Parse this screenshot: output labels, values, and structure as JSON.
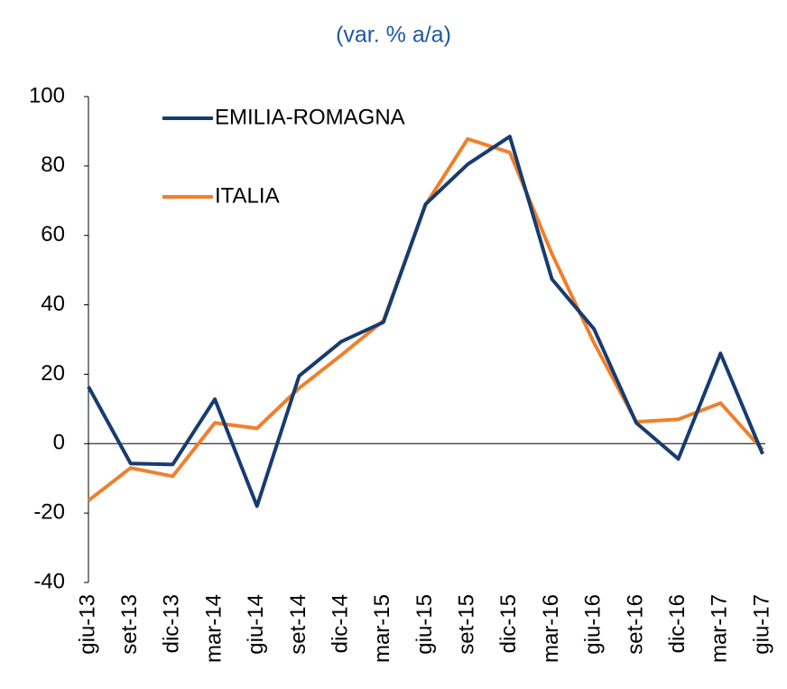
{
  "chart_data": {
    "type": "line",
    "title": "(var. % a/a)",
    "categories": [
      "giu-13",
      "set-13",
      "dic-13",
      "mar-14",
      "giu-14",
      "set-14",
      "dic-14",
      "mar-15",
      "giu-15",
      "set-15",
      "dic-15",
      "mar-16",
      "giu-16",
      "set-16",
      "dic-16",
      "mar-17",
      "giu-17"
    ],
    "series": [
      {
        "name": "EMILIA-ROMAGNA",
        "color": "#163c70",
        "values": [
          16.4,
          -5.7,
          -6,
          12.8,
          -18,
          19.5,
          29.4,
          35,
          69,
          80.5,
          88.5,
          47.4,
          33,
          6,
          -4.4,
          26,
          -3
        ]
      },
      {
        "name": "ITALIA",
        "color": "#f07f2c",
        "values": [
          -16.4,
          -7,
          -9.4,
          6,
          4.4,
          16,
          25.5,
          35.4,
          68.8,
          87.8,
          83.9,
          54.7,
          29,
          6.3,
          7,
          11.7,
          -1.8
        ]
      }
    ],
    "ylim": [
      -40,
      100
    ],
    "yticks": [
      -40,
      -20,
      0,
      20,
      40,
      60,
      80,
      100
    ],
    "grid": false,
    "legend": "top-left"
  }
}
